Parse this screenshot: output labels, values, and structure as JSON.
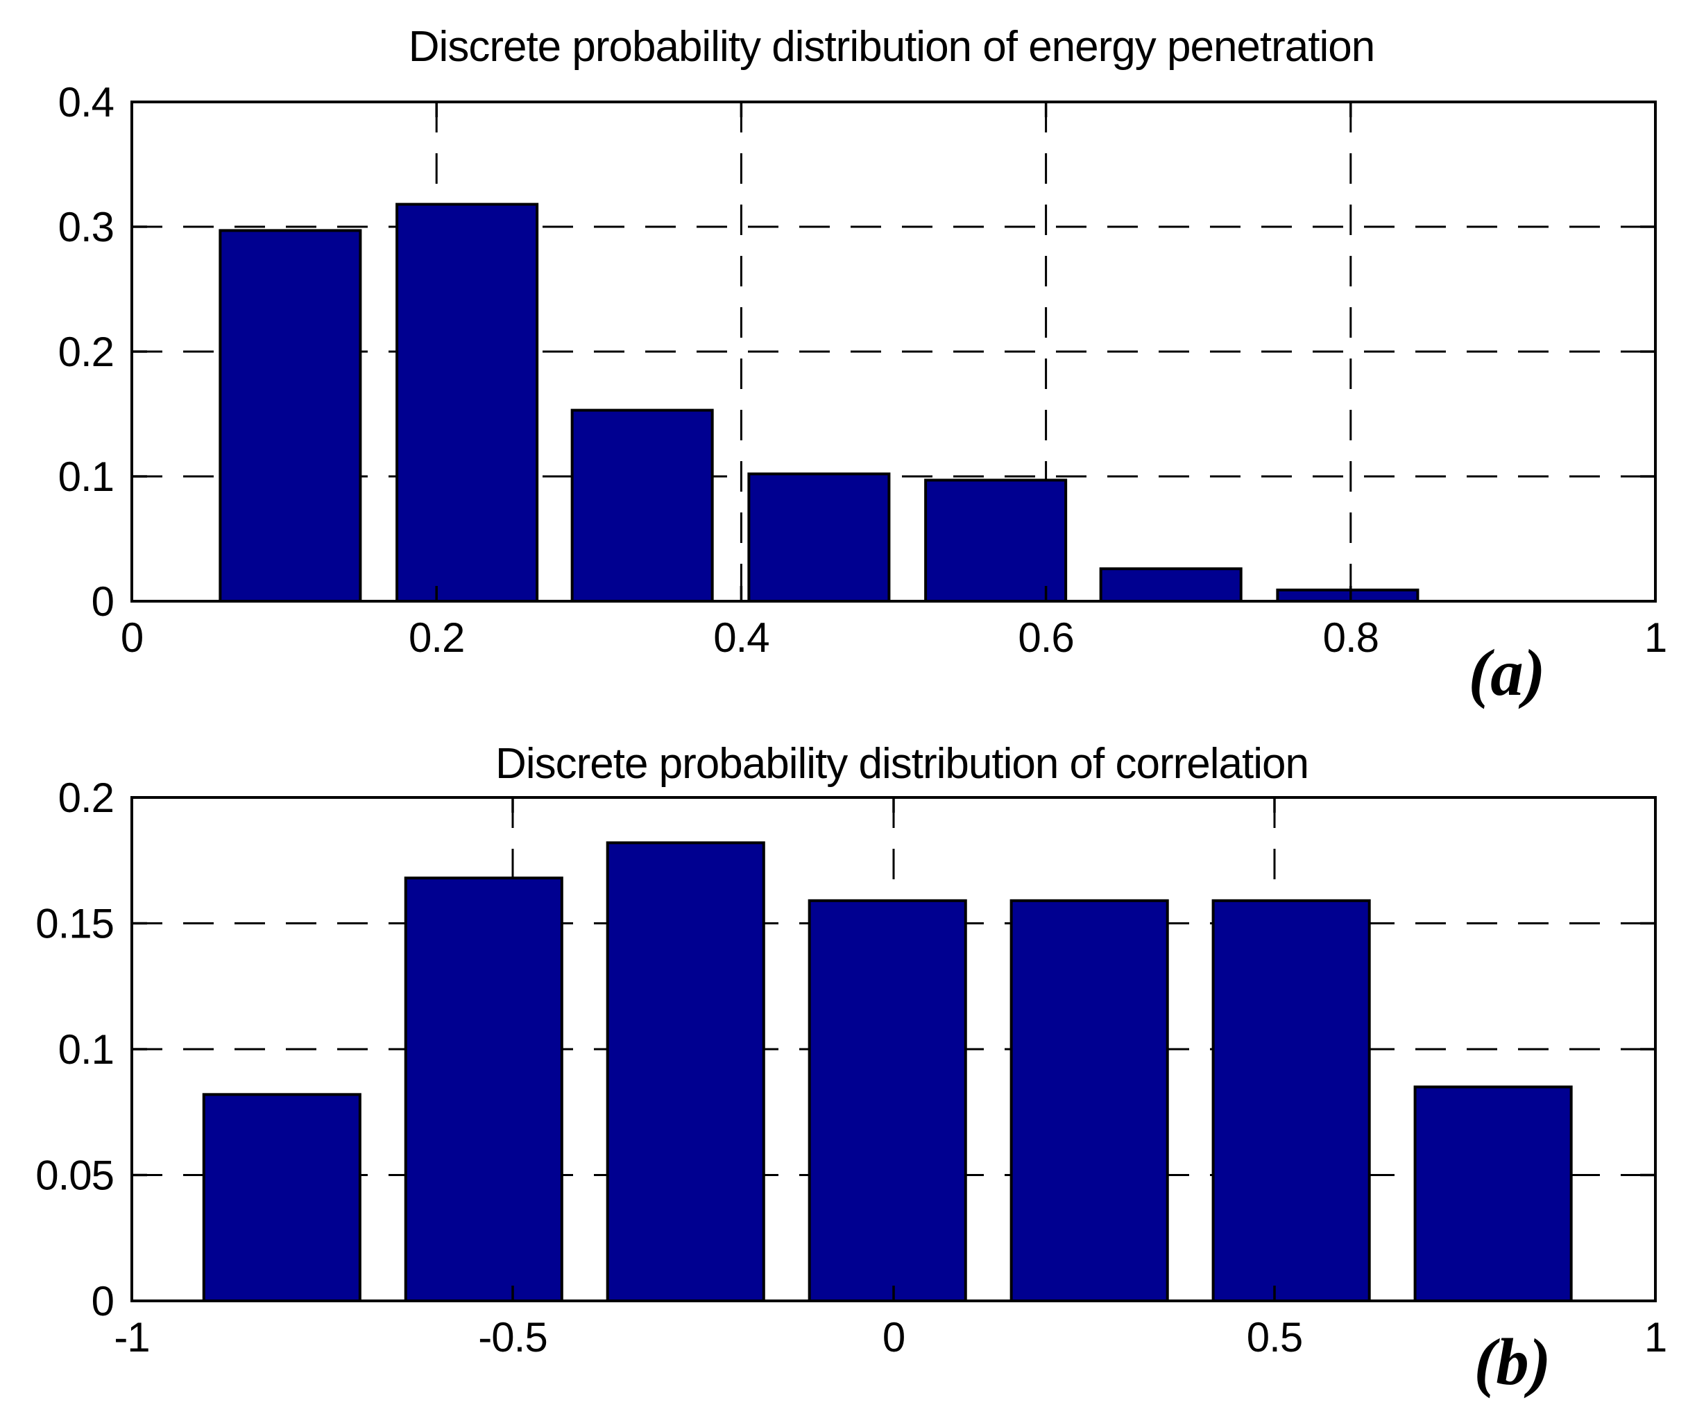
{
  "figure": {
    "background_color": "#ffffff",
    "axis_color": "#000000",
    "grid_style": "dashed"
  },
  "chart_data": [
    {
      "type": "bar",
      "title": "Discrete probability distribution of energy penetration",
      "annotation": "(a)",
      "xlabel": "",
      "ylabel": "",
      "xlim": [
        0,
        1
      ],
      "ylim": [
        0,
        0.4
      ],
      "xticks": [
        0,
        0.2,
        0.4,
        0.6,
        0.8,
        1
      ],
      "xtick_labels": [
        "0",
        "0.2",
        "0.4",
        "0.6",
        "0.8",
        "1"
      ],
      "yticks": [
        0,
        0.1,
        0.2,
        0.3,
        0.4
      ],
      "ytick_labels": [
        "0",
        "0.1",
        "0.2",
        "0.3",
        "0.4"
      ],
      "grid": "dashed",
      "legend": null,
      "bar_color": "#000090",
      "bar_edge_color": "#000000",
      "bar_width": 0.092,
      "x": [
        0.104,
        0.22,
        0.335,
        0.451,
        0.567,
        0.682,
        0.798
      ],
      "values": [
        0.297,
        0.318,
        0.153,
        0.102,
        0.097,
        0.026,
        0.009
      ]
    },
    {
      "type": "bar",
      "title": "Discrete probability distribution of correlation",
      "annotation": "(b)",
      "xlabel": "",
      "ylabel": "",
      "xlim": [
        -1,
        1
      ],
      "ylim": [
        0,
        0.2
      ],
      "xticks": [
        -1,
        -0.5,
        0,
        0.5,
        1
      ],
      "xtick_labels": [
        "-1",
        "-0.5",
        "0",
        "0.5",
        "1"
      ],
      "yticks": [
        0,
        0.05,
        0.1,
        0.15,
        0.2
      ],
      "ytick_labels": [
        "0",
        "0.05",
        "0.1",
        "0.15",
        "0.2"
      ],
      "grid": "dashed",
      "legend": null,
      "bar_color": "#000090",
      "bar_edge_color": "#000000",
      "bar_width": 0.205,
      "x": [
        -0.803,
        -0.538,
        -0.273,
        -0.008,
        0.257,
        0.522,
        0.787
      ],
      "values": [
        0.082,
        0.168,
        0.182,
        0.159,
        0.159,
        0.159,
        0.085
      ]
    }
  ]
}
